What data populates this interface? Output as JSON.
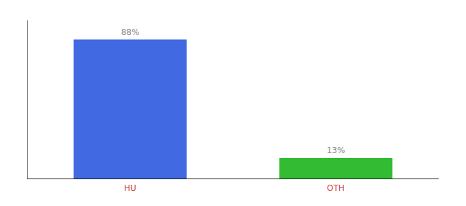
{
  "chart_data": {
    "type": "bar",
    "categories": [
      "HU",
      "OTH"
    ],
    "values": [
      88,
      13
    ],
    "value_labels": [
      "88%",
      "13%"
    ],
    "colors": [
      "#4169e1",
      "#33bb33"
    ],
    "ylim": [
      0,
      100
    ],
    "data_labels": true,
    "tick_labels": "x",
    "grid": false
  }
}
